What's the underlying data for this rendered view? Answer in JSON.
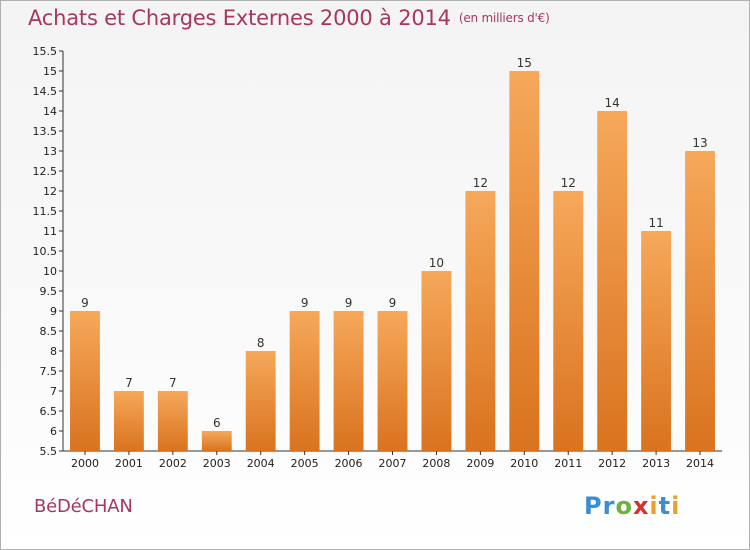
{
  "header": {
    "title": "Achats et Charges Externes 2000 à 2014",
    "subtitle": "(en milliers d'€)"
  },
  "footer": {
    "commune": "BéDéCHAN",
    "logo": [
      "Pr",
      "o",
      "x",
      "i",
      "t",
      "i"
    ]
  },
  "colors": {
    "title": "#a8365f",
    "bar_light": "#f6a85a",
    "bar_dark": "#d9731f"
  },
  "chart_data": {
    "type": "bar",
    "title": "Achats et Charges Externes 2000 à 2014",
    "subtitle": "(en milliers d'€)",
    "categories": [
      "2000",
      "2001",
      "2002",
      "2003",
      "2004",
      "2005",
      "2006",
      "2007",
      "2008",
      "2009",
      "2010",
      "2011",
      "2012",
      "2013",
      "2014"
    ],
    "values": [
      9,
      7,
      7,
      6,
      8,
      9,
      9,
      9,
      10,
      12,
      15,
      12,
      14,
      11,
      13
    ],
    "data_labels": [
      "9",
      "7",
      "7",
      "6",
      "8",
      "9",
      "9",
      "9",
      "10",
      "12",
      "15",
      "12",
      "14",
      "11",
      "13"
    ],
    "ylim": [
      5.5,
      15.5
    ],
    "ytick_step": 0.5,
    "y_ticks": [
      "5.5",
      "6",
      "6.5",
      "7",
      "7.5",
      "8",
      "8.5",
      "9",
      "9.5",
      "10",
      "10.5",
      "11",
      "11.5",
      "12",
      "12.5",
      "13",
      "13.5",
      "14",
      "14.5",
      "15",
      "15.5"
    ],
    "xlabel": "",
    "ylabel": "",
    "grid": false,
    "legend": "none"
  }
}
